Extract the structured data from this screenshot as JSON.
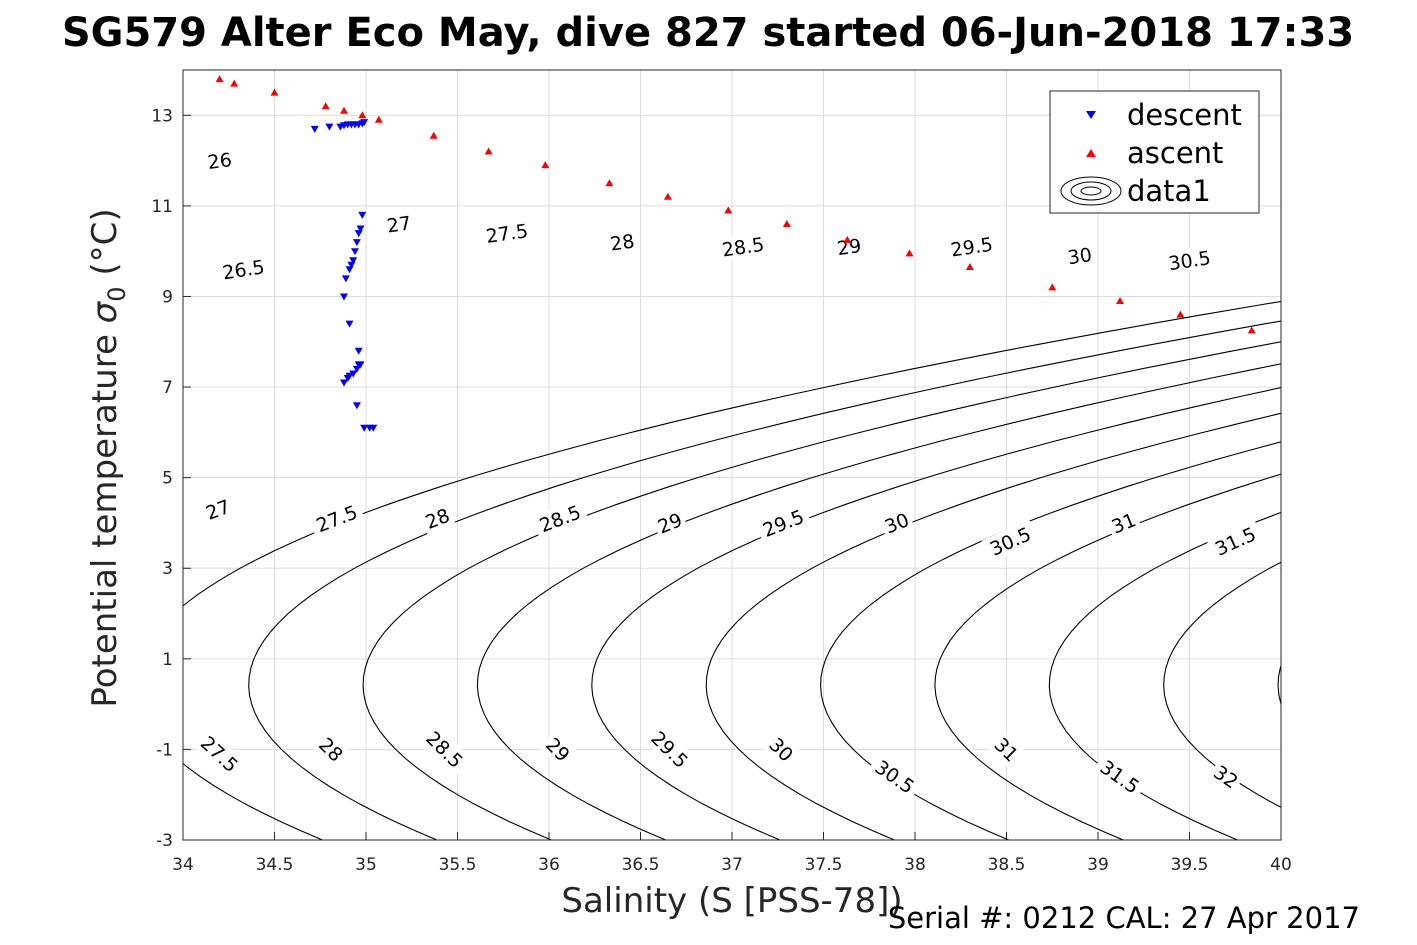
{
  "chart_data": {
    "type": "scatter",
    "title": "SG579 Alter Eco May, dive 827 started 06-Jun-2018 17:33",
    "xlabel": "Salinity (S [PSS-78])",
    "ylabel_main": "Potential temperature ",
    "ylabel_sym": "σ",
    "ylabel_sub": "0",
    "ylabel_unit": " (°C)",
    "footer": "Serial #: 0212  CAL: 27 Apr 2017",
    "xlim": [
      34,
      40
    ],
    "ylim": [
      -3,
      14
    ],
    "xticks": [
      34,
      34.5,
      35,
      35.5,
      36,
      36.5,
      37,
      37.5,
      38,
      38.5,
      39,
      39.5,
      40
    ],
    "xtick_labels": [
      "34",
      "34.5",
      "35",
      "35.5",
      "36",
      "36.5",
      "37",
      "37.5",
      "38",
      "38.5",
      "39",
      "39.5",
      "40"
    ],
    "yticks": [
      -3,
      -1,
      1,
      3,
      5,
      7,
      9,
      11,
      13
    ],
    "ytick_labels": [
      "-3",
      "-1",
      "1",
      "3",
      "5",
      "7",
      "9",
      "11",
      "13"
    ],
    "grid": true,
    "legend_position": "top-right",
    "series": [
      {
        "name": "descent",
        "marker": "triangle-down",
        "color": "#0000ff",
        "x": [
          34.72,
          34.8,
          34.86,
          34.88,
          34.9,
          34.92,
          34.94,
          34.96,
          34.98,
          34.99,
          34.98,
          34.97,
          34.96,
          34.95,
          34.94,
          34.93,
          34.92,
          34.91,
          34.89,
          34.88,
          34.91,
          34.96,
          34.97,
          34.96,
          34.95,
          34.93,
          34.91,
          34.9,
          34.88,
          34.95,
          34.99,
          35.02,
          35.04
        ],
        "y": [
          12.7,
          12.75,
          12.75,
          12.78,
          12.8,
          12.8,
          12.8,
          12.8,
          12.82,
          12.85,
          10.8,
          10.5,
          10.4,
          10.2,
          10.0,
          9.8,
          9.7,
          9.6,
          9.4,
          9.0,
          8.4,
          7.8,
          7.5,
          7.5,
          7.4,
          7.3,
          7.25,
          7.2,
          7.1,
          6.6,
          6.1,
          6.1,
          6.1
        ]
      },
      {
        "name": "ascent",
        "marker": "triangle-up",
        "color": "#ff0000",
        "x": [
          34.2,
          34.28,
          34.5,
          34.78,
          34.88,
          34.98,
          35.07,
          35.37,
          35.67,
          35.98,
          36.33,
          36.65,
          36.98,
          37.3,
          37.63,
          37.97,
          38.3,
          38.75,
          39.12,
          39.45,
          39.84
        ],
        "y": [
          13.8,
          13.7,
          13.5,
          13.2,
          13.1,
          13.0,
          12.9,
          12.55,
          12.2,
          11.9,
          11.5,
          11.2,
          10.9,
          10.6,
          10.25,
          9.95,
          9.65,
          9.2,
          8.9,
          8.6,
          8.25
        ]
      }
    ],
    "contours": {
      "name": "data1",
      "type": "sigma0-isopycnals",
      "levels": [
        26,
        26.5,
        27,
        27.5,
        28,
        28.5,
        29,
        29.5,
        30,
        30.5,
        31,
        31.5,
        32
      ],
      "labels": [
        {
          "text": "26",
          "x": 34.2,
          "y": 12.0
        },
        {
          "text": "26.5",
          "x": 34.33,
          "y": 9.6
        },
        {
          "text": "27",
          "x": 35.18,
          "y": 10.6
        },
        {
          "text": "27.5",
          "x": 35.77,
          "y": 10.4
        },
        {
          "text": "28",
          "x": 36.4,
          "y": 10.2
        },
        {
          "text": "28.5",
          "x": 37.06,
          "y": 10.1
        },
        {
          "text": "29",
          "x": 37.64,
          "y": 10.1
        },
        {
          "text": "29.5",
          "x": 38.31,
          "y": 10.1
        },
        {
          "text": "30",
          "x": 38.9,
          "y": 9.9
        },
        {
          "text": "30.5",
          "x": 39.5,
          "y": 9.8
        },
        {
          "text": "27",
          "x": 34.19,
          "y": 4.3
        },
        {
          "text": "27.5",
          "x": 34.84,
          "y": 4.1
        },
        {
          "text": "28",
          "x": 35.39,
          "y": 4.1
        },
        {
          "text": "28.5",
          "x": 36.06,
          "y": 4.1
        },
        {
          "text": "29",
          "x": 36.66,
          "y": 4.0
        },
        {
          "text": "29.5",
          "x": 37.28,
          "y": 4.0
        },
        {
          "text": "30",
          "x": 37.9,
          "y": 4.0
        },
        {
          "text": "30.5",
          "x": 38.52,
          "y": 3.6
        },
        {
          "text": "31",
          "x": 39.14,
          "y": 4.0
        },
        {
          "text": "31.5",
          "x": 39.75,
          "y": 3.6
        },
        {
          "text": "27.5",
          "x": 34.2,
          "y": -1.1
        },
        {
          "text": "28",
          "x": 34.81,
          "y": -1.0
        },
        {
          "text": "28.5",
          "x": 35.43,
          "y": -1.0
        },
        {
          "text": "29",
          "x": 36.05,
          "y": -1.0
        },
        {
          "text": "29.5",
          "x": 36.66,
          "y": -1.0
        },
        {
          "text": "30",
          "x": 37.27,
          "y": -1.0
        },
        {
          "text": "30.5",
          "x": 37.89,
          "y": -1.6
        },
        {
          "text": "31",
          "x": 38.5,
          "y": -1.0
        },
        {
          "text": "31.5",
          "x": 39.12,
          "y": -1.6
        },
        {
          "text": "32",
          "x": 39.7,
          "y": -1.6
        }
      ]
    }
  }
}
